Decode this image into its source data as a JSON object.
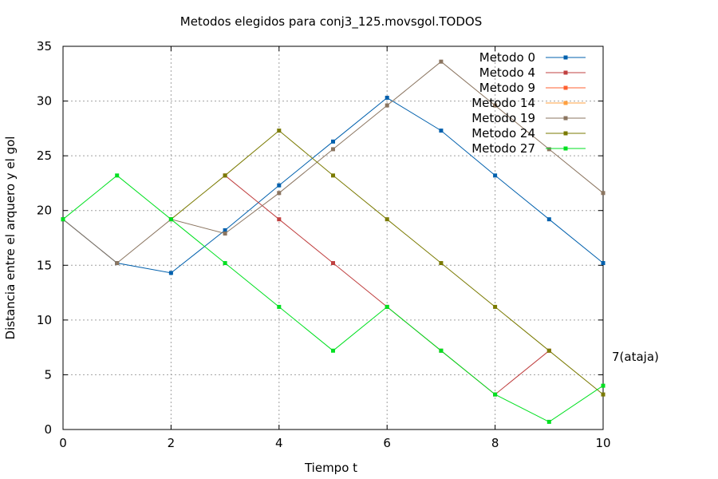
{
  "chart_data": {
    "type": "line",
    "title": "Metodos elegidos para conj3_125.movsgol.TODOS",
    "xlabel": "Tiempo t",
    "ylabel": "Distancia entre el arquero y el gol",
    "xlim": [
      0,
      10
    ],
    "ylim": [
      0,
      35
    ],
    "xticks": [
      0,
      2,
      4,
      6,
      8,
      10
    ],
    "yticks": [
      0,
      5,
      10,
      15,
      20,
      25,
      30,
      35
    ],
    "grid": true,
    "legend_position": "top-right",
    "annotation": "7(ataja)",
    "series": [
      {
        "name": "Metodo 0",
        "color": "#0060ad",
        "points": [
          [
            0,
            19.2
          ],
          [
            1,
            15.2
          ],
          [
            2,
            14.3
          ],
          [
            3,
            18.2
          ],
          [
            4,
            22.3
          ],
          [
            5,
            26.3
          ],
          [
            6,
            30.3
          ],
          [
            7,
            27.3
          ],
          [
            8,
            23.2
          ],
          [
            9,
            19.2
          ],
          [
            10,
            15.2
          ]
        ]
      },
      {
        "name": "Metodo 4",
        "color": "#c04040",
        "points": [
          [
            3,
            23.2
          ],
          [
            4,
            19.2
          ],
          [
            5,
            15.2
          ],
          [
            6,
            11.2
          ],
          [
            7,
            7.2
          ],
          [
            8,
            3.2
          ],
          [
            9,
            7.2
          ]
        ]
      },
      {
        "name": "Metodo 9",
        "color": "#ff6030",
        "points": []
      },
      {
        "name": "Metodo 14",
        "color": "#ffa040",
        "points": []
      },
      {
        "name": "Metodo 19",
        "color": "#8b7560",
        "points": [
          [
            0,
            19.2
          ],
          [
            1,
            15.2
          ],
          [
            2,
            19.2
          ],
          [
            3,
            17.9
          ],
          [
            4,
            21.6
          ],
          [
            5,
            25.6
          ],
          [
            6,
            29.6
          ],
          [
            7,
            33.6
          ],
          [
            8,
            29.6
          ],
          [
            9,
            25.6
          ],
          [
            10,
            21.6
          ]
        ]
      },
      {
        "name": "Metodo 24",
        "color": "#7a7a00",
        "points": [
          [
            2,
            19.2
          ],
          [
            3,
            23.2
          ],
          [
            4,
            27.3
          ],
          [
            5,
            23.2
          ],
          [
            6,
            19.2
          ],
          [
            7,
            15.2
          ],
          [
            8,
            11.2
          ],
          [
            9,
            7.2
          ],
          [
            10,
            3.2
          ]
        ]
      },
      {
        "name": "Metodo 27",
        "color": "#00e020",
        "points": [
          [
            0,
            19.2
          ],
          [
            1,
            23.2
          ],
          [
            2,
            19.2
          ],
          [
            3,
            15.2
          ],
          [
            4,
            11.2
          ],
          [
            5,
            7.2
          ],
          [
            6,
            11.2
          ],
          [
            7,
            7.2
          ],
          [
            8,
            3.2
          ],
          [
            9,
            0.7
          ],
          [
            10,
            4.0
          ]
        ]
      }
    ]
  }
}
